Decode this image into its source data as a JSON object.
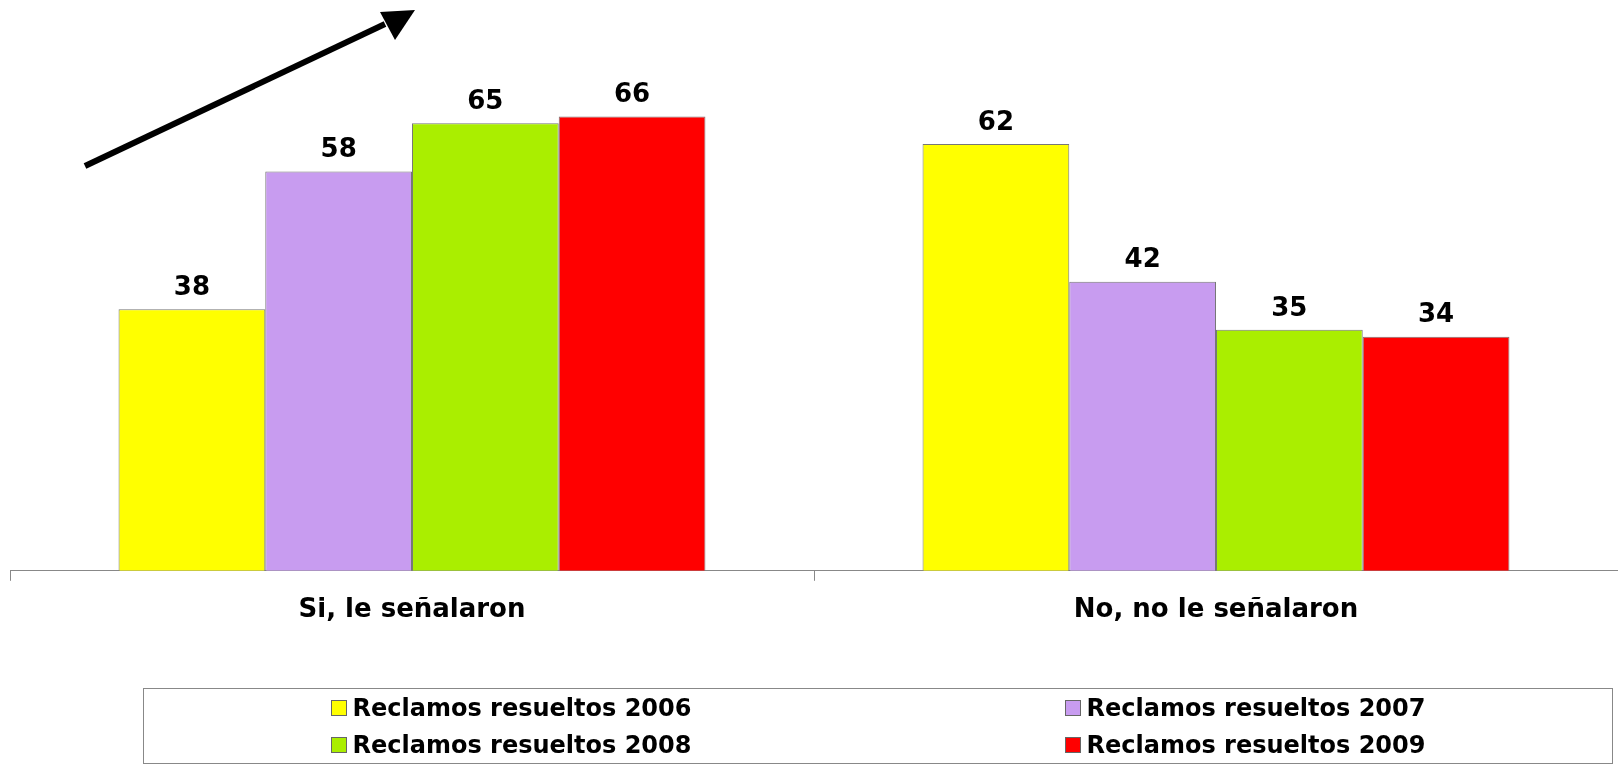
{
  "chart_data": {
    "type": "bar",
    "categories": [
      "Si, le señalaron",
      "No, no le señalaron"
    ],
    "series": [
      {
        "name": "Reclamos resueltos 2006",
        "color": "#ffff00",
        "values": [
          38,
          62
        ]
      },
      {
        "name": "Reclamos resueltos 2007",
        "color": "#c89cf0",
        "values": [
          58,
          42
        ]
      },
      {
        "name": "Reclamos resueltos 2008",
        "color": "#aaee00",
        "values": [
          65,
          35
        ]
      },
      {
        "name": "Reclamos resueltos 2009",
        "color": "#ff0000",
        "values": [
          66,
          34
        ]
      }
    ],
    "data_labels": true,
    "legend": "bottom",
    "grid": false
  }
}
